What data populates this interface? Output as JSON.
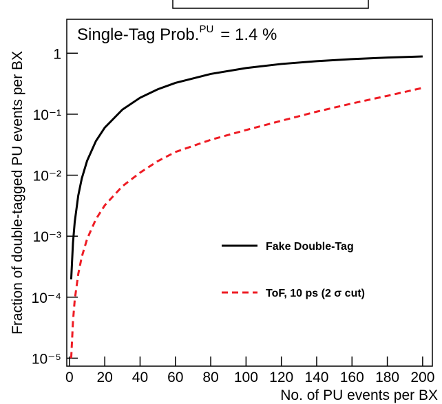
{
  "chart_data": {
    "type": "line",
    "annotation": {
      "text": "Single-Tag Prob.",
      "sup": "PU",
      "rest": "= 1.4 %"
    },
    "x_label": "No. of PU events per BX",
    "y_label": "Fraction of double-tagged PU events per BX",
    "x": [
      1,
      2,
      3,
      5,
      7,
      10,
      15,
      20,
      30,
      40,
      50,
      60,
      80,
      100,
      120,
      140,
      160,
      180,
      200
    ],
    "series": [
      {
        "name": "Fake Double-Tag",
        "color": "#000000",
        "dash": false,
        "values": [
          0.000196,
          0.000773,
          0.00171,
          0.00464,
          0.00884,
          0.0172,
          0.0363,
          0.0603,
          0.119,
          0.186,
          0.256,
          0.326,
          0.457,
          0.571,
          0.666,
          0.741,
          0.801,
          0.848,
          0.884
        ]
      },
      {
        "name": "ToF, 10 ps (2 σ cut)",
        "color": "#ee1c24",
        "dash": true,
        "values": [
          1e-05,
          4e-05,
          9e-05,
          0.00024,
          0.00046,
          0.0009,
          0.0019,
          0.0032,
          0.0066,
          0.011,
          0.017,
          0.024,
          0.038,
          0.055,
          0.078,
          0.11,
          0.15,
          0.2,
          0.27
        ]
      }
    ],
    "xlim": [
      -1.5,
      205.5
    ],
    "xticks": [
      0,
      20,
      40,
      60,
      80,
      100,
      120,
      140,
      160,
      180,
      200
    ],
    "ylim": [
      7.4e-06,
      3.6
    ],
    "log_y": true,
    "yticks": [
      {
        "value": 1e-05,
        "label": "10⁻⁵"
      },
      {
        "value": 0.0001,
        "label": "10⁻⁴"
      },
      {
        "value": 0.001,
        "label": "10⁻³"
      },
      {
        "value": 0.01,
        "label": "10⁻²"
      },
      {
        "value": 0.1,
        "label": "10⁻¹"
      },
      1
    ],
    "legend": "lower-right"
  }
}
